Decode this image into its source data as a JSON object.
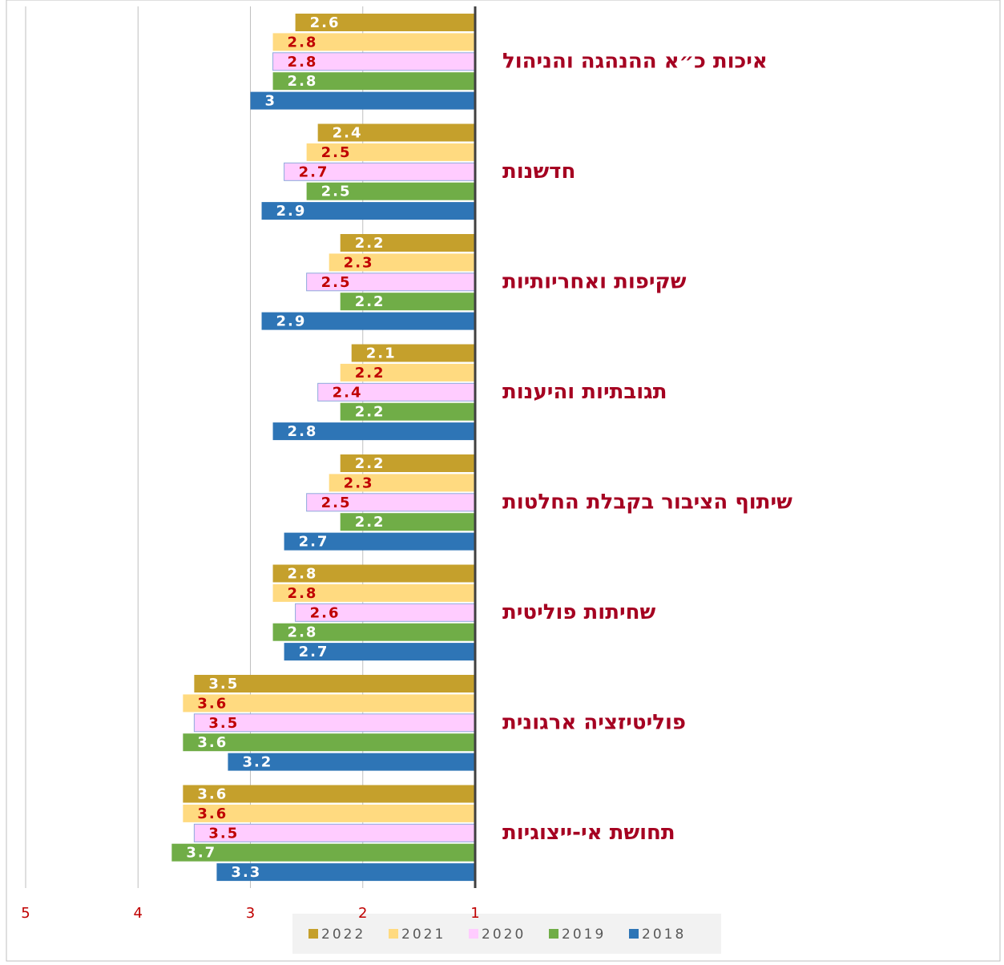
{
  "chart_data": {
    "type": "bar",
    "orientation": "horizontal",
    "x_reversed": true,
    "categories": [
      "איכות כ״א ההנהגה והניהול",
      "חדשנות",
      "שקיפות ואחריותיות",
      "תגובתיות והיענות",
      "שיתוף הציבור בקבלת החלטות",
      "שחיתות פוליטית",
      "פוליטיזציה ארגונית",
      "תחושת אי-ייצוגיות"
    ],
    "series": [
      {
        "name": "2022",
        "color": "#c5a02c",
        "label_color": "#ffffff",
        "values": [
          2.6,
          2.4,
          2.2,
          2.1,
          2.2,
          2.8,
          3.5,
          3.6
        ]
      },
      {
        "name": "2021",
        "color": "#ffda80",
        "label_color": "#c00000",
        "values": [
          2.8,
          2.5,
          2.3,
          2.2,
          2.3,
          2.8,
          3.6,
          3.6
        ]
      },
      {
        "name": "2020",
        "color": "#ffccff",
        "label_color": "#c00000",
        "values": [
          2.8,
          2.7,
          2.5,
          2.4,
          2.5,
          2.6,
          3.5,
          3.5
        ]
      },
      {
        "name": "2019",
        "color": "#70ad47",
        "label_color": "#ffffff",
        "values": [
          2.8,
          2.5,
          2.2,
          2.2,
          2.2,
          2.8,
          3.6,
          3.7
        ]
      },
      {
        "name": "2018",
        "color": "#2e75b6",
        "label_color": "#ffffff",
        "values": [
          3,
          2.9,
          2.9,
          2.8,
          2.7,
          2.7,
          3.2,
          3.3
        ]
      }
    ],
    "xlim": [
      1,
      5
    ],
    "xticks": [
      5,
      4,
      3,
      2,
      1
    ],
    "grid": true,
    "legend": "bottom"
  }
}
